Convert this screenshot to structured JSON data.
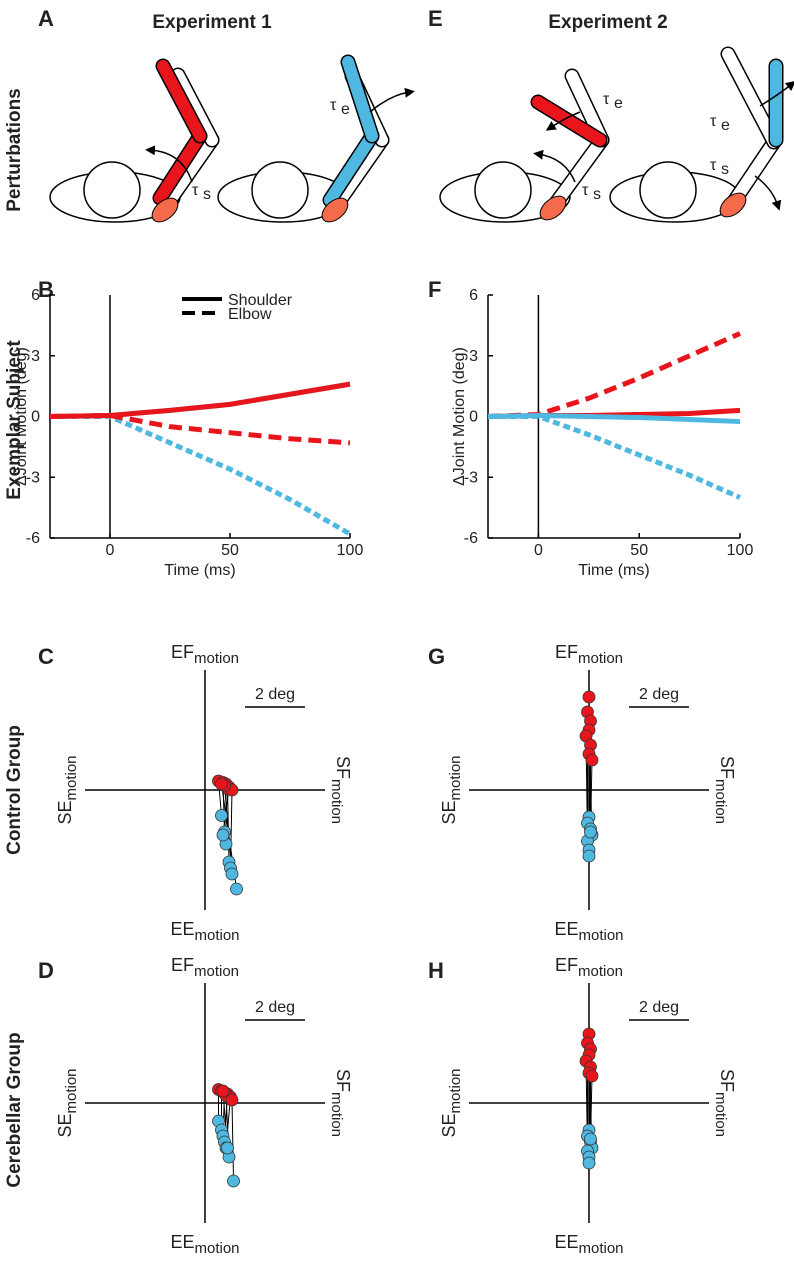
{
  "panel_labels": [
    "A",
    "B",
    "C",
    "D",
    "E",
    "F",
    "G",
    "H"
  ],
  "experiment_titles": [
    "Experiment 1",
    "Experiment 2"
  ],
  "row_labels": [
    "Perturbations",
    "Exemplar Subject",
    "Control Group",
    "Cerebellar Group"
  ],
  "torque": {
    "symbol": "τ",
    "shoulder": "s",
    "elbow": "e"
  },
  "chart_data": [
    {
      "type": "line",
      "x_label": "Time (ms)",
      "y_label": "ΔJoint Motion (deg)",
      "x": [
        -25,
        0,
        25,
        50,
        75,
        100
      ],
      "xlim": [
        -25,
        100
      ],
      "xticks": [
        0,
        50,
        100
      ],
      "ylim": [
        -6,
        6
      ],
      "yticks": [
        -6,
        -3,
        0,
        3,
        6
      ],
      "legend": [
        {
          "name": "Shoulder",
          "dash": "solid"
        },
        {
          "name": "Elbow",
          "dash": "dashed"
        }
      ],
      "series": [
        {
          "color": "#4fb8e0",
          "dash": "solid",
          "values": [
            0,
            0.05,
            0.3,
            0.6,
            1.1,
            1.6
          ]
        },
        {
          "color": "#4fb8e0",
          "dash": "dotted",
          "values": [
            0,
            0,
            -1.3,
            -2.6,
            -4.1,
            -5.8
          ]
        },
        {
          "color": "#e8161c",
          "dash": "solid",
          "values": [
            0,
            0.05,
            0.3,
            0.6,
            1.1,
            1.6
          ]
        },
        {
          "color": "#e8161c",
          "dash": "dashed",
          "values": [
            0,
            0.05,
            -0.5,
            -0.8,
            -1.1,
            -1.3
          ]
        }
      ]
    },
    {
      "type": "line",
      "x_label": "Time (ms)",
      "y_label": "ΔJoint Motion (deg)",
      "x": [
        -25,
        0,
        25,
        50,
        75,
        100
      ],
      "xlim": [
        -25,
        100
      ],
      "xticks": [
        0,
        50,
        100
      ],
      "ylim": [
        -6,
        6
      ],
      "yticks": [
        -6,
        -3,
        0,
        3,
        6
      ],
      "series": [
        {
          "color": "#e8161c",
          "dash": "solid",
          "values": [
            0,
            0.05,
            0.05,
            0.1,
            0.15,
            0.3
          ]
        },
        {
          "color": "#e8161c",
          "dash": "dashed",
          "values": [
            0,
            0.1,
            0.9,
            1.9,
            3.0,
            4.1
          ]
        },
        {
          "color": "#4fb8e0",
          "dash": "solid",
          "values": [
            0,
            0.05,
            0,
            -0.05,
            -0.15,
            -0.25
          ]
        },
        {
          "color": "#4fb8e0",
          "dash": "dotted",
          "values": [
            0,
            0,
            -0.9,
            -1.9,
            -2.9,
            -4.0
          ]
        }
      ]
    },
    {
      "type": "scatter",
      "xlim": [
        -4,
        4
      ],
      "ylim": [
        -4,
        4
      ],
      "top_label": {
        "main": "EF",
        "sub": "motion"
      },
      "bottom_label": {
        "main": "EE",
        "sub": "motion"
      },
      "left_label": {
        "main": "SE",
        "sub": "motion"
      },
      "right_label": {
        "main": "SF",
        "sub": "motion"
      },
      "scale_bar": {
        "length": 2,
        "label": "2 deg"
      },
      "series": [
        {
          "color": "#e8161c",
          "x": [
            0.45,
            0.6,
            0.7,
            0.8,
            0.75,
            0.9,
            0.65,
            0.55
          ],
          "y": [
            0.3,
            0.25,
            0.2,
            0.1,
            0.05,
            0,
            0.15,
            0.2
          ]
        },
        {
          "color": "#4fb8e0",
          "x": [
            0.55,
            0.65,
            0.7,
            0.6,
            0.8,
            0.85,
            0.9,
            1.05
          ],
          "y": [
            -0.85,
            -1.4,
            -1.8,
            -1.5,
            -2.4,
            -2.6,
            -2.8,
            -3.3
          ]
        }
      ]
    },
    {
      "type": "scatter",
      "xlim": [
        -4,
        4
      ],
      "ylim": [
        -4,
        4
      ],
      "top_label": {
        "main": "EF",
        "sub": "motion"
      },
      "bottom_label": {
        "main": "EE",
        "sub": "motion"
      },
      "left_label": {
        "main": "SE",
        "sub": "motion"
      },
      "right_label": {
        "main": "SF",
        "sub": "motion"
      },
      "scale_bar": {
        "length": 2,
        "label": "2 deg"
      },
      "series": [
        {
          "color": "#e8161c",
          "x": [
            0,
            -0.05,
            0.05,
            0,
            -0.1,
            0.05,
            0,
            0.1
          ],
          "y": [
            3.1,
            2.6,
            2.3,
            2.0,
            1.8,
            1.5,
            1.2,
            1.0
          ]
        },
        {
          "color": "#4fb8e0",
          "x": [
            0,
            -0.05,
            0.05,
            0.1,
            -0.05,
            0,
            0,
            0.05
          ],
          "y": [
            -0.9,
            -1.1,
            -1.3,
            -1.5,
            -1.7,
            -2.0,
            -2.2,
            -1.4
          ]
        }
      ]
    },
    {
      "type": "scatter",
      "xlim": [
        -4,
        4
      ],
      "ylim": [
        -4,
        4
      ],
      "top_label": {
        "main": "EF",
        "sub": "motion"
      },
      "bottom_label": {
        "main": "EE",
        "sub": "motion"
      },
      "left_label": {
        "main": "SE",
        "sub": "motion"
      },
      "right_label": {
        "main": "SF",
        "sub": "motion"
      },
      "scale_bar": {
        "length": 2,
        "label": "2 deg"
      },
      "series": [
        {
          "color": "#e8161c",
          "x": [
            0.45,
            0.55,
            0.65,
            0.75,
            0.85,
            0.7,
            0.6,
            0.9
          ],
          "y": [
            0.45,
            0.4,
            0.35,
            0.3,
            0.2,
            0.25,
            0.4,
            0.1
          ]
        },
        {
          "color": "#4fb8e0",
          "x": [
            0.45,
            0.55,
            0.6,
            0.65,
            0.7,
            0.8,
            0.75,
            0.95
          ],
          "y": [
            -0.6,
            -0.9,
            -1.1,
            -1.3,
            -1.5,
            -1.8,
            -1.5,
            -2.6
          ]
        }
      ]
    },
    {
      "type": "scatter",
      "xlim": [
        -4,
        4
      ],
      "ylim": [
        -4,
        4
      ],
      "top_label": {
        "main": "EF",
        "sub": "motion"
      },
      "bottom_label": {
        "main": "EE",
        "sub": "motion"
      },
      "left_label": {
        "main": "SE",
        "sub": "motion"
      },
      "right_label": {
        "main": "SF",
        "sub": "motion"
      },
      "scale_bar": {
        "length": 2,
        "label": "2 deg"
      },
      "series": [
        {
          "color": "#e8161c",
          "x": [
            0,
            -0.05,
            0.05,
            0,
            -0.1,
            0.05,
            0,
            0.1
          ],
          "y": [
            2.3,
            2.0,
            1.8,
            1.6,
            1.4,
            1.2,
            1.0,
            0.9
          ]
        },
        {
          "color": "#4fb8e0",
          "x": [
            0,
            -0.05,
            0.05,
            0.1,
            -0.05,
            0,
            0,
            0.05
          ],
          "y": [
            -0.9,
            -1.1,
            -1.3,
            -1.5,
            -1.6,
            -1.8,
            -2.0,
            -1.2
          ]
        }
      ]
    }
  ]
}
